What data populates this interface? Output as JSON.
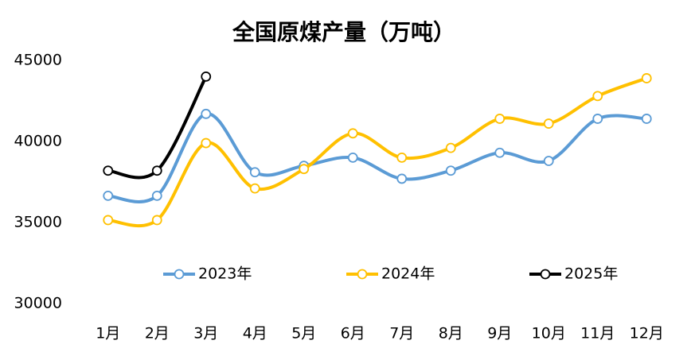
{
  "chart_data": {
    "type": "line",
    "title": "全国原煤产量（万吨）",
    "categories": [
      "1月",
      "2月",
      "3月",
      "4月",
      "5月",
      "6月",
      "7月",
      "8月",
      "9月",
      "10月",
      "11月",
      "12月"
    ],
    "series": [
      {
        "name": "2023年",
        "color": "#5b9bd5",
        "values": [
          36650,
          36650,
          41700,
          38100,
          38500,
          39000,
          37700,
          38200,
          39300,
          38800,
          41400,
          41400
        ]
      },
      {
        "name": "2024年",
        "color": "#ffc000",
        "values": [
          35150,
          35150,
          39900,
          37100,
          38300,
          40500,
          39000,
          39600,
          41400,
          41100,
          42800,
          43900
        ]
      },
      {
        "name": "2025年",
        "color": "#000000",
        "values": [
          38200,
          38200,
          44000,
          null,
          null,
          null,
          null,
          null,
          null,
          null,
          null,
          null
        ]
      }
    ],
    "ylim": [
      30000,
      45000
    ],
    "yticks": [
      30000,
      35000,
      40000,
      45000
    ],
    "grid": false,
    "legend": "bottom"
  }
}
